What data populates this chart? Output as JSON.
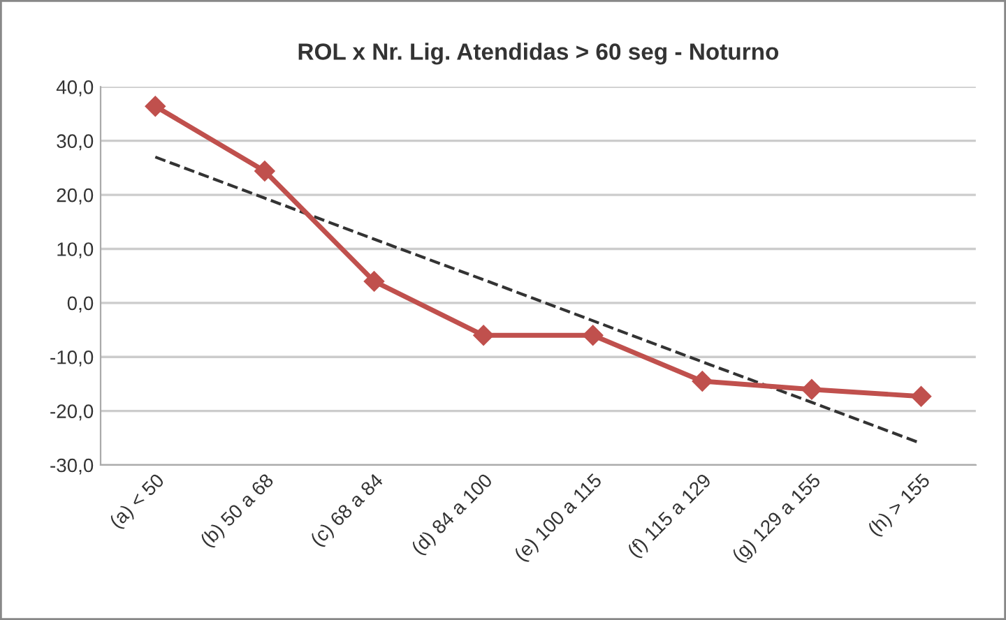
{
  "chart_data": {
    "type": "line",
    "title": "ROL x Nr. Lig. Atendidas > 60 seg - Noturno",
    "categories": [
      "(a) < 50",
      "(b) 50 a 68",
      "(c) 68 a 84",
      "(d) 84 a 100",
      "(e) 100 a 115",
      "(f) 115 a 129",
      "(g) 129 a 155",
      "(h) > 155"
    ],
    "series": [
      {
        "color": "#c0504d",
        "values": [
          36.4,
          24.4,
          4.0,
          -6.0,
          -6.0,
          -14.5,
          -16.0,
          -17.3
        ],
        "marker": "diamond",
        "line_style": "solid"
      },
      {
        "type": "line",
        "color": "#333333",
        "values": [
          27.0,
          19.4,
          11.8,
          4.3,
          -3.3,
          -10.9,
          -18.4,
          -26.0
        ],
        "marker": "none",
        "line_style": "dashed"
      }
    ],
    "ylim": [
      -30,
      40
    ],
    "yticks": [
      {
        "value": -30,
        "label": "-30,0"
      },
      {
        "value": -20,
        "label": "-20,0"
      },
      {
        "value": -10,
        "label": "-10,0"
      },
      {
        "value": 0,
        "label": "0,0"
      },
      {
        "value": 10,
        "label": "10,0"
      },
      {
        "value": 20,
        "label": "20,0"
      },
      {
        "value": 30,
        "label": "30,0"
      },
      {
        "value": 40,
        "label": "40,0"
      }
    ],
    "grid": "y"
  }
}
